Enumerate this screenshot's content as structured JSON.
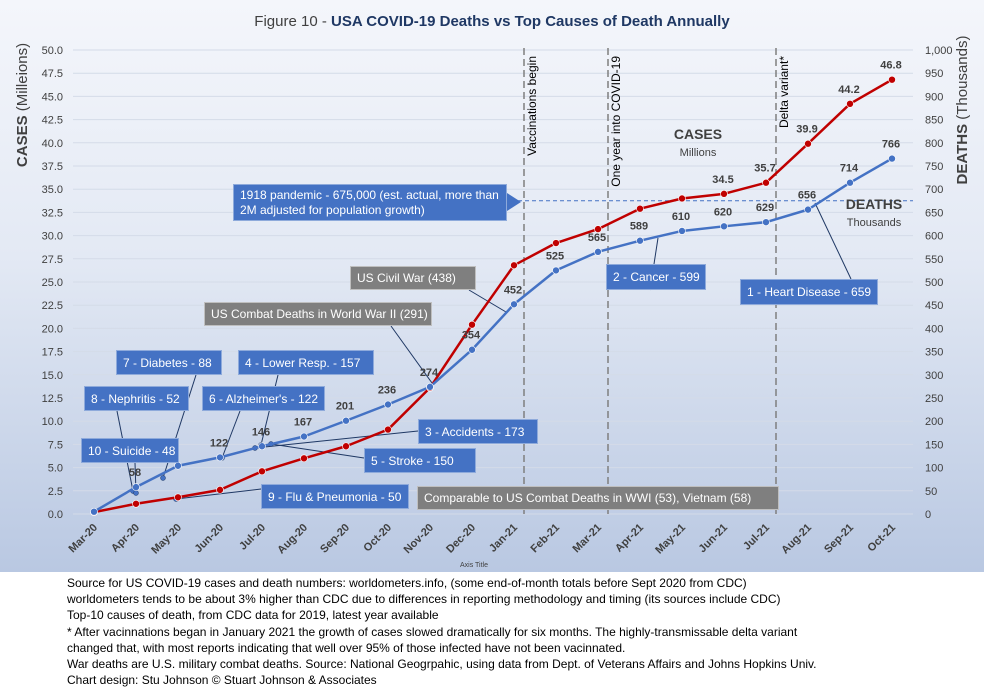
{
  "chart_data": {
    "type": "line",
    "title_prefix": "Figure 10 - ",
    "title_main": "USA COVID-19 Deaths vs Top Causes of Death Annually",
    "categories": [
      "Mar-20",
      "Apr-20",
      "May-20",
      "Jun-20",
      "Jul-20",
      "Aug-20",
      "Sep-20",
      "Oct-20",
      "Nov-20",
      "Dec-20",
      "Jan-21",
      "Feb-21",
      "Mar-21",
      "Apr-21",
      "May-21",
      "Jun-21",
      "Jul-21",
      "Aug-21",
      "Sep-21",
      "Oct-21"
    ],
    "xlabel": "Axis Title",
    "y_left": {
      "label_bold": "CASES",
      "label_paren": "(Milleions)",
      "min": 0,
      "max": 50,
      "step": 2.5,
      "ticks": [
        "0.0",
        "2.5",
        "5.0",
        "7.5",
        "10.0",
        "12.5",
        "15.0",
        "17.5",
        "20.0",
        "22.5",
        "25.0",
        "27.5",
        "30.0",
        "32.5",
        "35.0",
        "37.5",
        "40.0",
        "42.5",
        "45.0",
        "47.5",
        "50.0"
      ]
    },
    "y_right": {
      "label_bold": "DEATHS",
      "label_paren": "(Thousands)",
      "min": 0,
      "max": 1000,
      "step": 50,
      "ticks": [
        "0",
        "50",
        "100",
        "150",
        "200",
        "250",
        "300",
        "350",
        "400",
        "450",
        "500",
        "550",
        "600",
        "650",
        "700",
        "750",
        "800",
        "850",
        "900",
        "950",
        "1,000"
      ]
    },
    "series": [
      {
        "name": "CASES",
        "unit_label": "Millions",
        "axis": "left",
        "color": "#c00000",
        "values": [
          0.2,
          1.1,
          1.8,
          2.6,
          4.6,
          6.0,
          7.3,
          9.1,
          13.6,
          20.4,
          26.8,
          29.2,
          30.7,
          32.9,
          34.0,
          34.5,
          35.7,
          39.9,
          44.2,
          46.8
        ],
        "labels": [
          "",
          "",
          "",
          "",
          "",
          "",
          "",
          "",
          "",
          "",
          "",
          "",
          "",
          "",
          "",
          "34.5",
          "35.7",
          "39.9",
          "44.2",
          "46.8"
        ]
      },
      {
        "name": "DEATHS",
        "unit_label": "Thousands",
        "axis": "right",
        "color": "#4472c4",
        "values": [
          5,
          58,
          104,
          122,
          146,
          167,
          201,
          236,
          274,
          354,
          452,
          525,
          565,
          589,
          610,
          620,
          629,
          656,
          714,
          766
        ],
        "labels": [
          "",
          "58",
          "",
          "122",
          "146",
          "167",
          "201",
          "236",
          "274",
          "354",
          "452",
          "525",
          "565",
          "589",
          "610",
          "620",
          "629",
          "656",
          "714",
          "766"
        ]
      }
    ],
    "vertical_markers": [
      {
        "label": "Vaccinations begin",
        "category": "Jan-21"
      },
      {
        "label": "One year into COVID-19",
        "category": "Mar-21"
      },
      {
        "label": "Delta variant*",
        "category": "Jul-21"
      }
    ],
    "reference_line": {
      "value": 675,
      "axis": "right"
    },
    "cause_markers": [
      {
        "text": "10 - Suicide - 48",
        "value": 48
      },
      {
        "text": "9 - Flu & Pneumonia - 50",
        "value": 50
      },
      {
        "text": "8 - Nephritis - 52",
        "value": 52
      },
      {
        "text": "7 - Diabetes - 88",
        "value": 88
      },
      {
        "text": "6 - Alzheimer's - 122",
        "value": 122
      },
      {
        "text": "5 - Stroke - 150",
        "value": 150
      },
      {
        "text": "4 - Lower Resp.  - 157",
        "value": 157
      },
      {
        "text": "3 - Accidents - 173",
        "value": 173
      },
      {
        "text": "2 - Cancer - 599",
        "value": 599
      },
      {
        "text": "1 - Heart Disease - 659",
        "value": 659
      }
    ],
    "war_markers": [
      {
        "text": "Comparable to US Combat Deaths in WWI (53), Vietnam (58)"
      },
      {
        "text": "US Combat Deaths in World War II (291)",
        "value": 291
      },
      {
        "text": "US Civil War (438)",
        "value": 438
      }
    ],
    "pandemic_note": "1918 pandemic - 675,000 (est. actual, more than 2M adjusted for population growth)"
  },
  "footer": [
    "Source for US COVID-19 cases and death numbers: worldometers.info, (some end-of-month totals before Sept 2020 from CDC)",
    "worldometers tends to be about 3% higher than CDC due to differences in reporting methodology and timing (its sources include CDC)",
    "Top-10 causes of death, from CDC data for 2019, latest year available",
    "* After vacinnations began in January 2021 the growth of cases slowed dramatically for six months. The highly-transmissable delta variant",
    "changed that, with most reports indicating that well over 95% of those infected have not been vacinnated.",
    "War deaths are U.S. military combat deaths.  Source: National Geogrpahic, using data from Dept. of Veterans Affairs and Johns Hopkins Univ.",
    "Chart design: Stu Johnson © Stuart Johnson & Associates"
  ]
}
